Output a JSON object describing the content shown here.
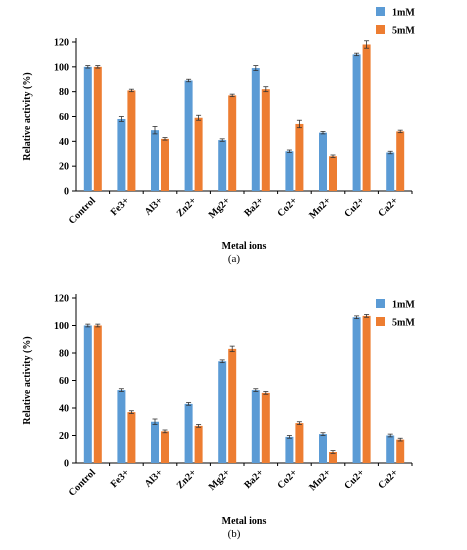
{
  "colors": {
    "series_1mM": "#5B9BD5",
    "series_5mM": "#ED7D31",
    "error_bar": "#333333"
  },
  "chart_data": [
    {
      "type": "bar",
      "panel_label": "(a)",
      "categories": [
        "Control",
        "Fe3+",
        "Al3+",
        "Zn2+",
        "Mg2+",
        "Ba2+",
        "Co2+",
        "Mn2+",
        "Cu2+",
        "Ca2+"
      ],
      "series": [
        {
          "name": "1mM",
          "values": [
            100,
            58,
            49,
            89,
            41,
            99,
            32,
            47,
            110,
            31
          ],
          "errors": [
            1,
            2,
            3,
            1,
            1,
            2,
            1,
            1,
            1,
            1
          ]
        },
        {
          "name": "5mM",
          "values": [
            100,
            81,
            42,
            59,
            77,
            82,
            54,
            28,
            118,
            48
          ],
          "errors": [
            1,
            1,
            1,
            2,
            1,
            2,
            3,
            1,
            3,
            1
          ]
        }
      ],
      "xlabel": "Metal ions",
      "ylabel": "Relative activity (%)",
      "ylim": [
        0,
        120
      ],
      "yticks": [
        0,
        20,
        40,
        60,
        80,
        100,
        120
      ],
      "legend_position": "top-right"
    },
    {
      "type": "bar",
      "panel_label": "(b)",
      "categories": [
        "Control",
        "Fe3+",
        "Al3+",
        "Zn2+",
        "Mg2+",
        "Ba2+",
        "Co2+",
        "Mn2+",
        "Cu2+",
        "Ca2+"
      ],
      "series": [
        {
          "name": "1mM",
          "values": [
            100,
            53,
            30,
            43,
            74,
            53,
            19,
            21,
            106,
            20
          ],
          "errors": [
            1,
            1,
            2,
            1,
            1,
            1,
            1,
            1,
            1,
            1
          ]
        },
        {
          "name": "5mM",
          "values": [
            100,
            37,
            23,
            27,
            83,
            51,
            29,
            8,
            107,
            17
          ],
          "errors": [
            1,
            1,
            1,
            1,
            2,
            1,
            1,
            1,
            1,
            1
          ]
        }
      ],
      "xlabel": "Metal ions",
      "ylabel": "Relative activity (%)",
      "ylim": [
        0,
        120
      ],
      "yticks": [
        0,
        20,
        40,
        60,
        80,
        100,
        120
      ],
      "legend_position": "top-right"
    }
  ]
}
